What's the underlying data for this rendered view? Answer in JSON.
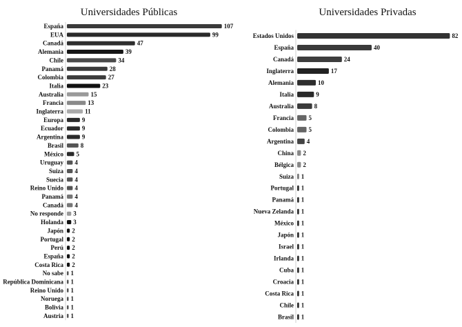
{
  "chart_data": [
    {
      "type": "bar",
      "orientation": "horizontal",
      "title": "Universidades Públicas",
      "categories": [
        "España",
        "EUA",
        "Canadá",
        "Alemania",
        "Chile",
        "Panamá",
        "Colombia",
        "Italia",
        "Australia",
        "Francia",
        "Inglaterra",
        "Europa",
        "Ecuador",
        "Argentina",
        "Brasil",
        "México",
        "Uruguay",
        "Suiza",
        "Suecia",
        "Reino Unido",
        "Panamá",
        "Canadá",
        "No responde",
        "Holanda",
        "Japón",
        "Portugal",
        "Perú",
        "España",
        "Costa Rica",
        "No sabe",
        "República Dominicana",
        "Reino Unido",
        "Noruega",
        "Bolivia",
        "Austria"
      ],
      "values": [
        107,
        99,
        47,
        39,
        34,
        28,
        27,
        23,
        15,
        13,
        11,
        9,
        9,
        9,
        8,
        5,
        4,
        4,
        4,
        4,
        4,
        4,
        3,
        3,
        2,
        2,
        2,
        2,
        2,
        1,
        1,
        1,
        1,
        1,
        1
      ],
      "colors": [
        "#3a3a3a",
        "#2a2a2a",
        "#2e2e2e",
        "#151515",
        "#4a4a4a",
        "#3a3a3a",
        "#3c3c3c",
        "#111111",
        "#9a9a9a",
        "#8a8a8a",
        "#aaaaaa",
        "#2a2a2a",
        "#2a2a2a",
        "#2a2a2a",
        "#555555",
        "#2a2a2a",
        "#555555",
        "#555555",
        "#555555",
        "#555555",
        "#777777",
        "#777777",
        "#999999",
        "#111111",
        "#111111",
        "#111111",
        "#111111",
        "#111111",
        "#111111",
        "#555555",
        "#555555",
        "#555555",
        "#555555",
        "#555555",
        "#555555"
      ],
      "xlim": [
        0,
        110
      ],
      "grid": false,
      "legend": "none"
    },
    {
      "type": "bar",
      "orientation": "horizontal",
      "title": "Universidades Privadas",
      "categories": [
        "Estados Unidos",
        "España",
        "Canadá",
        "Inglaterra",
        "Alemania",
        "Italia",
        "Australia",
        "Francia",
        "Colombia",
        "Argentina",
        "China",
        "Bélgica",
        "Suiza",
        "Portugal",
        "Panamá",
        "Nueva Zelanda",
        "México",
        "Japón",
        "Israel",
        "Irlanda",
        "Cuba",
        "Croacia",
        "Costa Rica",
        "Chile",
        "Brasil"
      ],
      "values": [
        82,
        40,
        24,
        17,
        10,
        9,
        8,
        5,
        5,
        4,
        2,
        2,
        1,
        1,
        1,
        1,
        1,
        1,
        1,
        1,
        1,
        1,
        1,
        1,
        1
      ],
      "colors": [
        "#333333",
        "#3a3a3a",
        "#3d3d3d",
        "#222222",
        "#2e2e2e",
        "#2a2a2a",
        "#3a3a3a",
        "#666666",
        "#666666",
        "#444444",
        "#888888",
        "#888888",
        "#777777",
        "#2a2a2a",
        "#2a2a2a",
        "#2a2a2a",
        "#2a2a2a",
        "#2a2a2a",
        "#2a2a2a",
        "#2a2a2a",
        "#2a2a2a",
        "#2a2a2a",
        "#2a2a2a",
        "#2a2a2a",
        "#2a2a2a"
      ],
      "xlim": [
        0,
        84
      ],
      "grid": false,
      "legend": "none"
    }
  ]
}
